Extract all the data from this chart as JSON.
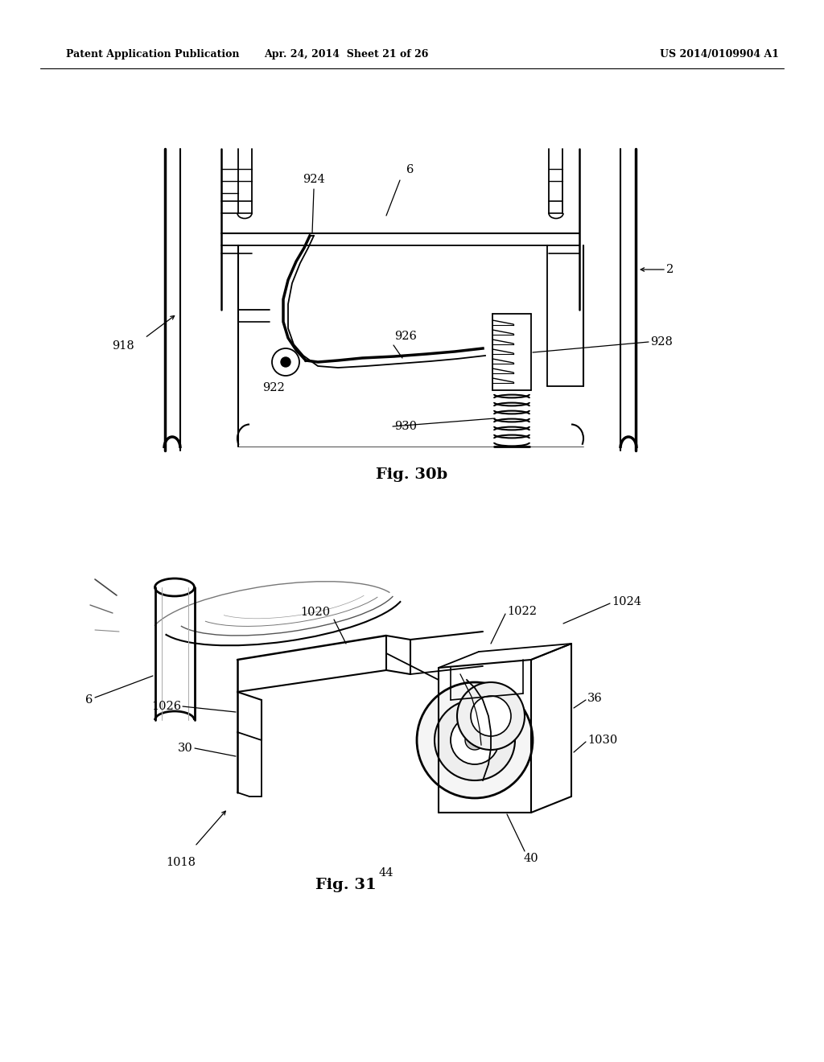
{
  "bg": "#ffffff",
  "header_left": "Patent Application Publication",
  "header_mid": "Apr. 24, 2014  Sheet 21 of 26",
  "header_right": "US 2014/0109904 A1",
  "caption_30b": "Fig. 30b",
  "caption_31": "Fig. 31"
}
